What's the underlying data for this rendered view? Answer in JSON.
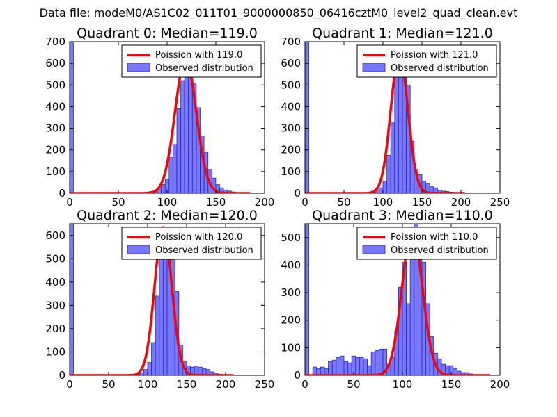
{
  "suptitle": "Data file: modeM0/AS1C02_011T01_9000000850_06416cztM0_level2_quad_clean.evt",
  "colors": {
    "bars": "#7777ff",
    "bar_edge": "#2b2bb0",
    "poisson": "#ff0000",
    "axes": "#000000"
  },
  "chart_data": [
    {
      "type": "bar",
      "title": "Quadrant 0: Median=119.0",
      "xlim": [
        0,
        200
      ],
      "ylim": [
        0,
        700
      ],
      "xticks": [
        0,
        50,
        100,
        150,
        200
      ],
      "yticks": [
        0,
        100,
        200,
        300,
        400,
        500,
        600,
        700
      ],
      "legend": [
        "Poission with 119.0",
        "Observed distribution"
      ],
      "legend_loc": "upper right",
      "hist": {
        "bin_width": 3.9,
        "bins": [
          [
            0,
            720
          ],
          [
            74,
            3
          ],
          [
            78,
            5
          ],
          [
            82,
            8
          ],
          [
            86,
            10
          ],
          [
            90,
            25
          ],
          [
            94,
            40
          ],
          [
            98,
            65
          ],
          [
            102,
            165
          ],
          [
            106,
            225
          ],
          [
            110,
            390
          ],
          [
            114,
            520
          ],
          [
            118,
            575
          ],
          [
            122,
            540
          ],
          [
            126,
            505
          ],
          [
            130,
            395
          ],
          [
            134,
            265
          ],
          [
            138,
            190
          ],
          [
            142,
            110
          ],
          [
            146,
            70
          ],
          [
            150,
            40
          ],
          [
            154,
            25
          ],
          [
            158,
            15
          ],
          [
            162,
            10
          ],
          [
            166,
            6
          ],
          [
            170,
            3
          ]
        ]
      },
      "poisson": {
        "mu": 119.0,
        "peak": 620,
        "sigma": 10.9,
        "x_range": [
          0,
          185
        ]
      }
    },
    {
      "type": "bar",
      "title": "Quadrant 1: Median=121.0",
      "xlim": [
        0,
        250
      ],
      "ylim": [
        0,
        700
      ],
      "xticks": [
        0,
        50,
        100,
        150,
        200,
        250
      ],
      "yticks": [
        0,
        100,
        200,
        300,
        400,
        500,
        600,
        700
      ],
      "legend": [
        "Poission with 121.0",
        "Observed distribution"
      ],
      "legend_loc": "upper right",
      "hist": {
        "bin_width": 5,
        "bins": [
          [
            0,
            720
          ],
          [
            80,
            5
          ],
          [
            85,
            10
          ],
          [
            90,
            15
          ],
          [
            95,
            25
          ],
          [
            100,
            55
          ],
          [
            105,
            175
          ],
          [
            110,
            325
          ],
          [
            115,
            550
          ],
          [
            120,
            680
          ],
          [
            125,
            600
          ],
          [
            130,
            500
          ],
          [
            135,
            240
          ],
          [
            140,
            110
          ],
          [
            145,
            85
          ],
          [
            150,
            55
          ],
          [
            155,
            45
          ],
          [
            160,
            30
          ],
          [
            165,
            25
          ],
          [
            170,
            15
          ],
          [
            175,
            10
          ],
          [
            180,
            8
          ],
          [
            185,
            5
          ],
          [
            190,
            3
          ]
        ]
      },
      "poisson": {
        "mu": 121.0,
        "peak": 640,
        "sigma": 11.0,
        "x_range": [
          0,
          205
        ]
      }
    },
    {
      "type": "bar",
      "title": "Quadrant 2: Median=120.0",
      "xlim": [
        0,
        250
      ],
      "ylim": [
        0,
        650
      ],
      "xticks": [
        0,
        50,
        100,
        150,
        200,
        250
      ],
      "yticks": [
        0,
        100,
        200,
        300,
        400,
        500,
        600
      ],
      "legend": [
        "Poission with 120.0",
        "Observed distribution"
      ],
      "legend_loc": "upper right",
      "hist": {
        "bin_width": 5,
        "bins": [
          [
            0,
            660
          ],
          [
            85,
            5
          ],
          [
            90,
            10
          ],
          [
            95,
            25
          ],
          [
            100,
            55
          ],
          [
            105,
            140
          ],
          [
            110,
            340
          ],
          [
            115,
            500
          ],
          [
            120,
            620
          ],
          [
            125,
            590
          ],
          [
            130,
            540
          ],
          [
            135,
            360
          ],
          [
            140,
            130
          ],
          [
            145,
            60
          ],
          [
            150,
            40
          ],
          [
            155,
            35
          ],
          [
            160,
            40
          ],
          [
            165,
            35
          ],
          [
            170,
            30
          ],
          [
            175,
            25
          ],
          [
            180,
            15
          ],
          [
            185,
            10
          ],
          [
            190,
            5
          ],
          [
            195,
            3
          ]
        ]
      },
      "poisson": {
        "mu": 120.0,
        "peak": 635,
        "sigma": 11.0,
        "x_range": [
          0,
          210
        ]
      }
    },
    {
      "type": "bar",
      "title": "Quadrant 3: Median=110.0",
      "xlim": [
        0,
        200
      ],
      "ylim": [
        0,
        550
      ],
      "xticks": [
        0,
        50,
        100,
        150,
        200
      ],
      "yticks": [
        0,
        100,
        200,
        300,
        400,
        500
      ],
      "legend": [
        "Poission with 110.0",
        "Observed distribution"
      ],
      "legend_loc": "upper right",
      "hist": {
        "bin_width": 4,
        "bins": [
          [
            0,
            560
          ],
          [
            8,
            30
          ],
          [
            12,
            25
          ],
          [
            16,
            30
          ],
          [
            20,
            25
          ],
          [
            24,
            50
          ],
          [
            28,
            55
          ],
          [
            32,
            65
          ],
          [
            36,
            70
          ],
          [
            40,
            50
          ],
          [
            44,
            45
          ],
          [
            48,
            70
          ],
          [
            52,
            65
          ],
          [
            56,
            65
          ],
          [
            60,
            60
          ],
          [
            64,
            35
          ],
          [
            68,
            85
          ],
          [
            72,
            90
          ],
          [
            76,
            95
          ],
          [
            80,
            95
          ],
          [
            84,
            40
          ],
          [
            88,
            65
          ],
          [
            92,
            160
          ],
          [
            96,
            320
          ],
          [
            100,
            410
          ],
          [
            104,
            260
          ],
          [
            108,
            510
          ],
          [
            112,
            560
          ],
          [
            116,
            470
          ],
          [
            120,
            410
          ],
          [
            124,
            260
          ],
          [
            128,
            140
          ],
          [
            132,
            80
          ],
          [
            136,
            60
          ],
          [
            140,
            40
          ],
          [
            144,
            35
          ],
          [
            148,
            35
          ],
          [
            152,
            25
          ],
          [
            156,
            15
          ],
          [
            160,
            10
          ],
          [
            164,
            10
          ],
          [
            168,
            5
          ]
        ]
      },
      "poisson": {
        "mu": 110.0,
        "peak": 525,
        "sigma": 10.5,
        "x_range": [
          0,
          190
        ]
      }
    }
  ]
}
